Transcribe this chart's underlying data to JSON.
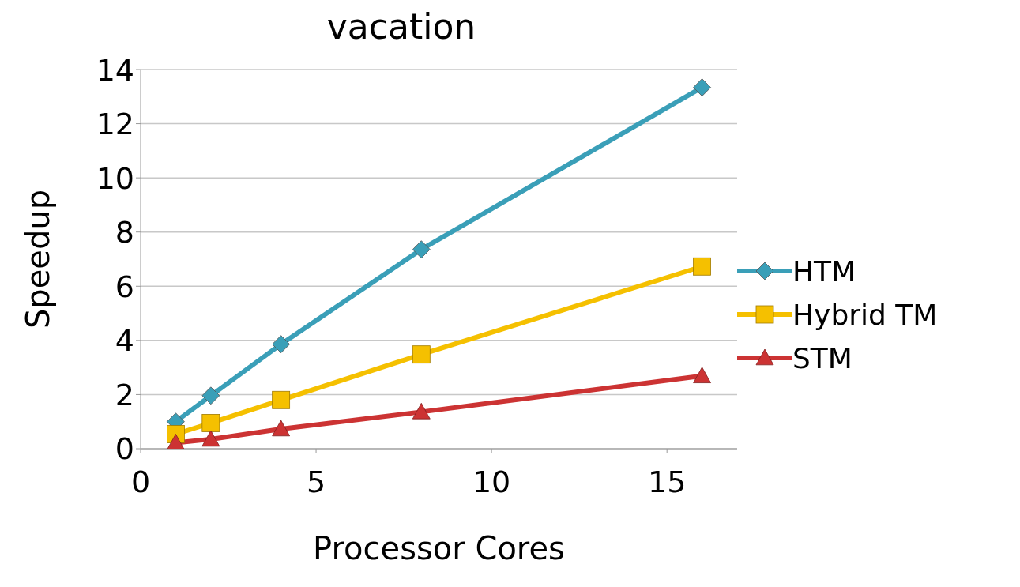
{
  "chart_data": {
    "type": "line",
    "title": "vacation",
    "xlabel": "Processor Cores",
    "ylabel": "Speedup",
    "x": [
      1,
      2,
      4,
      8,
      16
    ],
    "series": [
      {
        "name": "HTM",
        "color": "#3a9fb8",
        "marker": "diamond",
        "values": [
          1.0,
          1.96,
          3.86,
          7.36,
          13.34
        ]
      },
      {
        "name": "Hybrid TM",
        "color": "#f5c000",
        "marker": "square",
        "values": [
          0.54,
          0.95,
          1.8,
          3.48,
          6.73
        ]
      },
      {
        "name": "STM",
        "color": "#cc3333",
        "marker": "triangle",
        "values": [
          0.22,
          0.35,
          0.73,
          1.36,
          2.69
        ]
      }
    ],
    "xlim": [
      0,
      17
    ],
    "xticks": [
      0,
      5,
      10,
      15
    ],
    "ylim": [
      0,
      14
    ],
    "yticks": [
      0,
      2,
      4,
      6,
      8,
      10,
      12,
      14
    ],
    "grid": "y",
    "legend": "right",
    "line_style": "solid"
  }
}
